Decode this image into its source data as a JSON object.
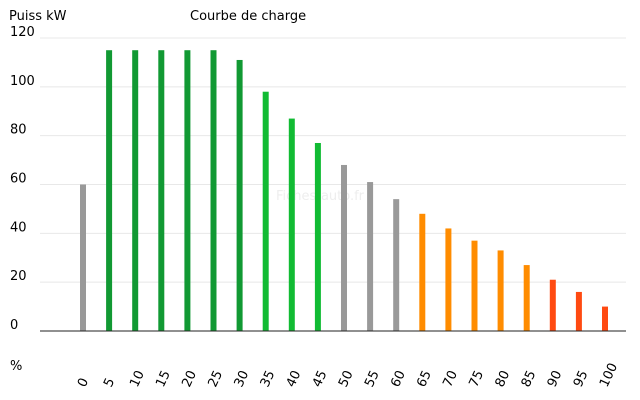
{
  "chart_data": {
    "type": "bar",
    "title": "Courbe de charge",
    "ylabel": "Puiss kW",
    "xlabel": "%",
    "watermark": "Fiches-auto.fr",
    "ylim": [
      0,
      120
    ],
    "yticks": [
      0,
      20,
      40,
      60,
      80,
      100,
      120
    ],
    "grid": "horizontal",
    "categories": [
      "0",
      "5",
      "10",
      "15",
      "20",
      "25",
      "30",
      "35",
      "40",
      "45",
      "50",
      "55",
      "60",
      "65",
      "70",
      "75",
      "80",
      "85",
      "90",
      "95",
      "100"
    ],
    "values": [
      60,
      115,
      115,
      115,
      115,
      115,
      111,
      98,
      87,
      77,
      68,
      61,
      54,
      48,
      42,
      37,
      33,
      27,
      21,
      16,
      10
    ],
    "colors": [
      "#999999",
      "#119933",
      "#119933",
      "#119933",
      "#119933",
      "#119933",
      "#119933",
      "#11bb33",
      "#11bb33",
      "#11bb33",
      "#999999",
      "#999999",
      "#999999",
      "#ff8c00",
      "#ff8c00",
      "#ff8c00",
      "#ff8c00",
      "#ff8c00",
      "#ff4a11",
      "#ff4a11",
      "#ff4a11"
    ]
  }
}
